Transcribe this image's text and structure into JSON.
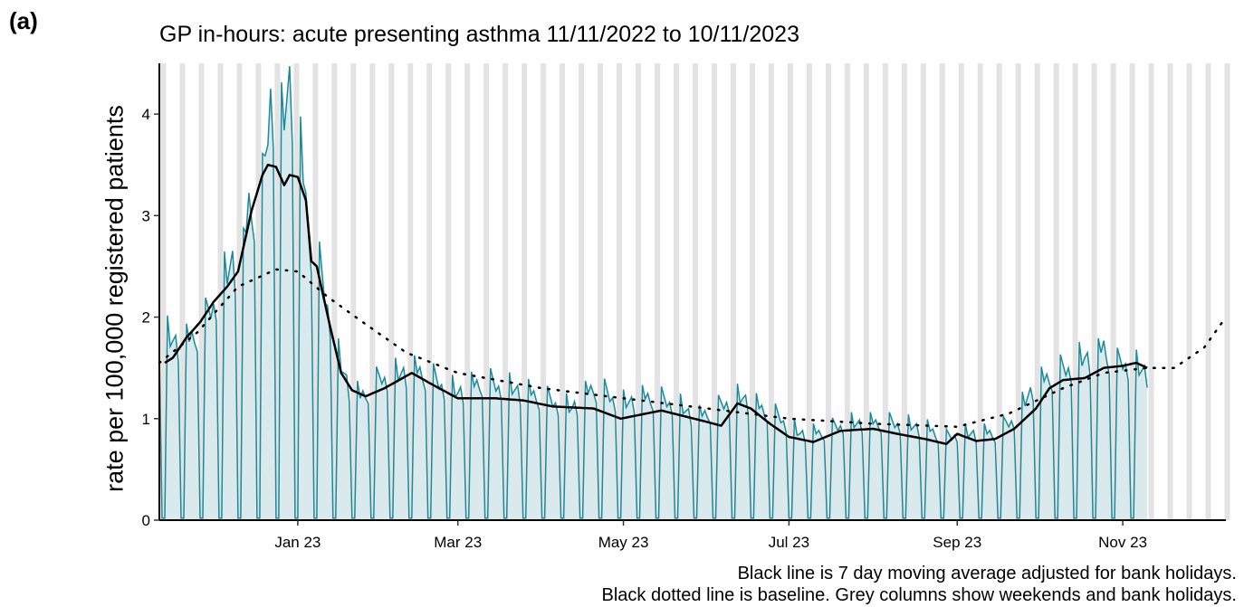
{
  "panel_label": "(a)",
  "caption": {
    "line1": "Black line is 7 day moving average adjusted for bank holidays.",
    "line2": "Black dotted line is baseline. Grey columns show weekends and bank holidays."
  },
  "colors": {
    "daily_line": "#1b8a9b",
    "daily_fill": "#d9e9ec",
    "moving_average": "#000000",
    "baseline": "#000000",
    "weekend_columns": "#e3e3e3"
  },
  "chart_data": {
    "type": "line",
    "title": "GP in-hours: acute presenting asthma 11/11/2022 to 10/11/2023",
    "xlabel": "",
    "ylabel": "rate per 100,000 registered patients",
    "x_range": [
      "2022-11-11",
      "2023-12-09"
    ],
    "ylim": [
      0,
      4.5
    ],
    "y_ticks": [
      0,
      1,
      2,
      3,
      4
    ],
    "x_ticks": [
      {
        "date": "2023-01-01",
        "label": "Jan 23"
      },
      {
        "date": "2023-03-01",
        "label": "Mar 23"
      },
      {
        "date": "2023-05-01",
        "label": "May 23"
      },
      {
        "date": "2023-07-01",
        "label": "Jul 23"
      },
      {
        "date": "2023-09-01",
        "label": "Sep 23"
      },
      {
        "date": "2023-11-01",
        "label": "Nov 23"
      }
    ],
    "grid": false,
    "weekend_columns": "weekends and bank holidays, 11/11/2022 to 09/12/2023",
    "series": [
      {
        "name": "daily rate",
        "weekday_points": [
          [
            "2022-11-11",
            1.85
          ],
          [
            "2022-11-20",
            1.7
          ],
          [
            "2022-11-27",
            1.9
          ],
          [
            "2022-12-04",
            2.3
          ],
          [
            "2022-12-08",
            2.55
          ],
          [
            "2022-12-11",
            2.3
          ],
          [
            "2022-12-14",
            3.1
          ],
          [
            "2022-12-18",
            3.0
          ],
          [
            "2022-12-20",
            3.45
          ],
          [
            "2022-12-22",
            4.25
          ],
          [
            "2022-12-25",
            3.7
          ],
          [
            "2022-12-29",
            4.3
          ],
          [
            "2023-01-02",
            3.55
          ],
          [
            "2023-01-04",
            3.1
          ],
          [
            "2023-01-06",
            2.7
          ],
          [
            "2023-01-09",
            2.45
          ],
          [
            "2023-01-13",
            2.0
          ],
          [
            "2023-01-16",
            1.6
          ],
          [
            "2023-01-20",
            1.3
          ],
          [
            "2023-01-24",
            1.2
          ],
          [
            "2023-02-01",
            1.4
          ],
          [
            "2023-02-10",
            1.45
          ],
          [
            "2023-02-15",
            1.45
          ],
          [
            "2023-02-22",
            1.35
          ],
          [
            "2023-03-01",
            1.25
          ],
          [
            "2023-03-10",
            1.35
          ],
          [
            "2023-03-20",
            1.3
          ],
          [
            "2023-04-01",
            1.2
          ],
          [
            "2023-04-12",
            1.1
          ],
          [
            "2023-04-20",
            1.3
          ],
          [
            "2023-05-01",
            1.15
          ],
          [
            "2023-05-10",
            1.2
          ],
          [
            "2023-05-20",
            1.15
          ],
          [
            "2023-05-28",
            1.0
          ],
          [
            "2023-06-05",
            1.1
          ],
          [
            "2023-06-10",
            1.2
          ],
          [
            "2023-06-14",
            1.2
          ],
          [
            "2023-06-20",
            1.1
          ],
          [
            "2023-06-28",
            1.0
          ],
          [
            "2023-07-05",
            0.85
          ],
          [
            "2023-07-12",
            0.85
          ],
          [
            "2023-07-22",
            0.95
          ],
          [
            "2023-08-01",
            0.95
          ],
          [
            "2023-08-10",
            0.95
          ],
          [
            "2023-08-20",
            0.9
          ],
          [
            "2023-08-28",
            0.8
          ],
          [
            "2023-09-01",
            0.85
          ],
          [
            "2023-09-07",
            0.85
          ],
          [
            "2023-09-15",
            0.85
          ],
          [
            "2023-09-22",
            1.0
          ],
          [
            "2023-09-29",
            1.3
          ],
          [
            "2023-10-05",
            1.4
          ],
          [
            "2023-10-12",
            1.5
          ],
          [
            "2023-10-18",
            1.6
          ],
          [
            "2023-10-22",
            1.55
          ],
          [
            "2023-10-25",
            1.7
          ],
          [
            "2023-10-29",
            1.5
          ],
          [
            "2023-11-01",
            1.55
          ],
          [
            "2023-11-06",
            1.5
          ],
          [
            "2023-11-10",
            1.45
          ]
        ],
        "weekend_value": 0.02
      },
      {
        "name": "7 day moving average",
        "points": [
          [
            "2022-11-13",
            1.55
          ],
          [
            "2022-11-16",
            1.6
          ],
          [
            "2022-11-21",
            1.8
          ],
          [
            "2022-11-26",
            1.95
          ],
          [
            "2022-12-01",
            2.15
          ],
          [
            "2022-12-06",
            2.3
          ],
          [
            "2022-12-10",
            2.45
          ],
          [
            "2022-12-15",
            3.05
          ],
          [
            "2022-12-19",
            3.4
          ],
          [
            "2022-12-21",
            3.5
          ],
          [
            "2022-12-24",
            3.48
          ],
          [
            "2022-12-27",
            3.3
          ],
          [
            "2022-12-29",
            3.4
          ],
          [
            "2023-01-01",
            3.38
          ],
          [
            "2023-01-04",
            3.15
          ],
          [
            "2023-01-06",
            2.55
          ],
          [
            "2023-01-08",
            2.5
          ],
          [
            "2023-01-13",
            1.9
          ],
          [
            "2023-01-17",
            1.45
          ],
          [
            "2023-01-21",
            1.28
          ],
          [
            "2023-01-26",
            1.22
          ],
          [
            "2023-02-02",
            1.3
          ],
          [
            "2023-02-12",
            1.45
          ],
          [
            "2023-02-20",
            1.33
          ],
          [
            "2023-03-01",
            1.2
          ],
          [
            "2023-03-15",
            1.2
          ],
          [
            "2023-03-25",
            1.18
          ],
          [
            "2023-04-05",
            1.12
          ],
          [
            "2023-04-20",
            1.1
          ],
          [
            "2023-04-30",
            1.0
          ],
          [
            "2023-05-15",
            1.08
          ],
          [
            "2023-05-30",
            0.98
          ],
          [
            "2023-06-06",
            0.93
          ],
          [
            "2023-06-12",
            1.15
          ],
          [
            "2023-06-17",
            1.1
          ],
          [
            "2023-06-24",
            0.95
          ],
          [
            "2023-07-01",
            0.82
          ],
          [
            "2023-07-10",
            0.77
          ],
          [
            "2023-07-20",
            0.88
          ],
          [
            "2023-08-01",
            0.9
          ],
          [
            "2023-08-10",
            0.85
          ],
          [
            "2023-08-20",
            0.8
          ],
          [
            "2023-08-28",
            0.75
          ],
          [
            "2023-09-01",
            0.85
          ],
          [
            "2023-09-08",
            0.78
          ],
          [
            "2023-09-15",
            0.8
          ],
          [
            "2023-09-22",
            0.9
          ],
          [
            "2023-09-30",
            1.1
          ],
          [
            "2023-10-05",
            1.3
          ],
          [
            "2023-10-10",
            1.38
          ],
          [
            "2023-10-18",
            1.4
          ],
          [
            "2023-10-25",
            1.5
          ],
          [
            "2023-11-01",
            1.52
          ],
          [
            "2023-11-06",
            1.55
          ],
          [
            "2023-11-10",
            1.5
          ]
        ]
      },
      {
        "name": "baseline",
        "points": [
          [
            "2022-11-11",
            1.55
          ],
          [
            "2022-11-25",
            1.85
          ],
          [
            "2022-12-10",
            2.3
          ],
          [
            "2022-12-24",
            2.47
          ],
          [
            "2023-01-01",
            2.45
          ],
          [
            "2023-01-12",
            2.2
          ],
          [
            "2023-01-25",
            1.95
          ],
          [
            "2023-02-10",
            1.65
          ],
          [
            "2023-03-01",
            1.45
          ],
          [
            "2023-04-01",
            1.3
          ],
          [
            "2023-05-01",
            1.2
          ],
          [
            "2023-06-01",
            1.1
          ],
          [
            "2023-07-01",
            1.0
          ],
          [
            "2023-08-01",
            0.95
          ],
          [
            "2023-09-01",
            0.92
          ],
          [
            "2023-09-20",
            1.05
          ],
          [
            "2023-10-10",
            1.3
          ],
          [
            "2023-10-25",
            1.45
          ],
          [
            "2023-11-10",
            1.5
          ],
          [
            "2023-11-20",
            1.5
          ],
          [
            "2023-12-01",
            1.7
          ],
          [
            "2023-12-09",
            2.0
          ]
        ]
      }
    ]
  }
}
